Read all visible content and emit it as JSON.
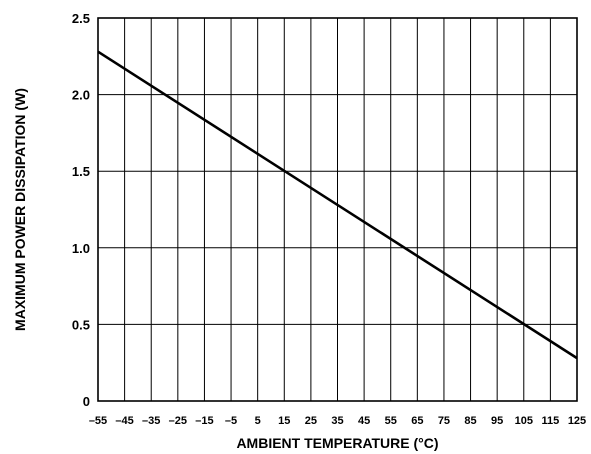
{
  "chart_data": {
    "type": "line",
    "title": "",
    "xlabel": "AMBIENT TEMPERATURE (°C)",
    "ylabel": "MAXIMUM POWER DISSIPATION (W)",
    "xlim": [
      -55,
      125
    ],
    "ylim": [
      0,
      2.5
    ],
    "x_ticks": [
      -55,
      -45,
      -35,
      -25,
      -15,
      -5,
      5,
      15,
      25,
      35,
      45,
      55,
      65,
      75,
      85,
      95,
      105,
      115,
      125
    ],
    "x_tick_labels": [
      "–55",
      "–45",
      "–35",
      "–25",
      "–15",
      "–5",
      "5",
      "15",
      "25",
      "35",
      "45",
      "55",
      "65",
      "75",
      "85",
      "95",
      "105",
      "115",
      "125"
    ],
    "y_ticks": [
      0,
      0.5,
      1.0,
      1.5,
      2.0,
      2.5
    ],
    "y_tick_labels": [
      "0",
      "0.5",
      "1.0",
      "1.5",
      "2.0",
      "2.5"
    ],
    "grid": true,
    "legend": "none",
    "series": [
      {
        "x": [
          -55,
          125
        ],
        "y": [
          2.28,
          0.28
        ]
      }
    ]
  }
}
